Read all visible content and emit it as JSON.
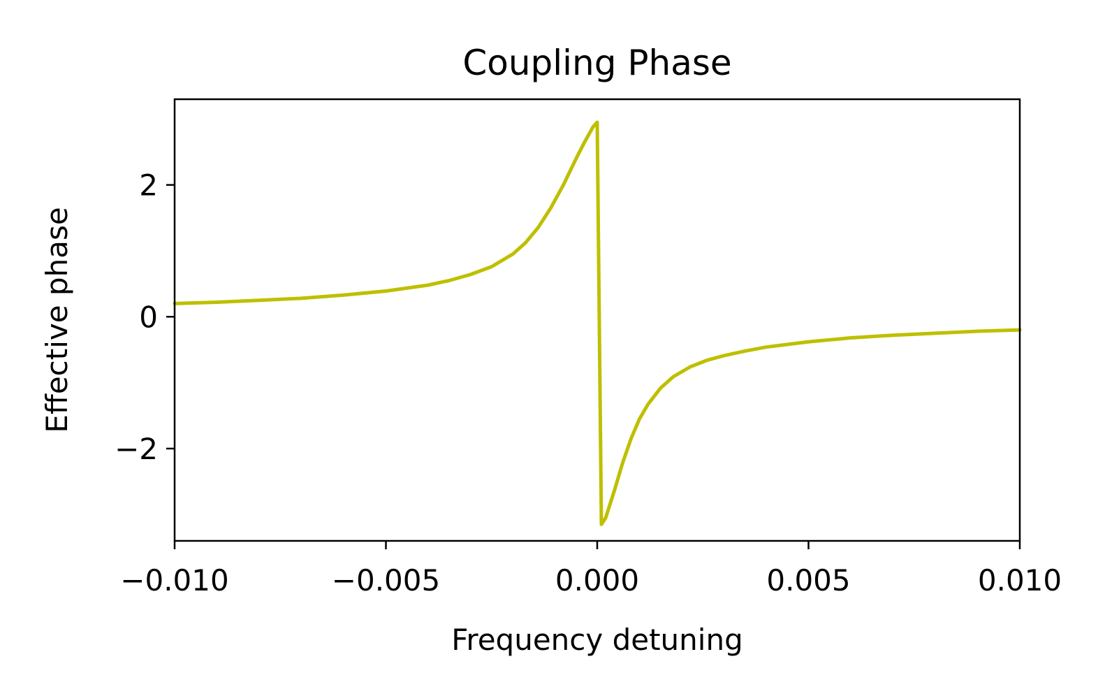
{
  "chart_data": {
    "type": "line",
    "title": "Coupling Phase",
    "xlabel": "Frequency detuning",
    "ylabel": "Effective phase",
    "xlim": [
      -0.01,
      0.01
    ],
    "ylim": [
      -3.4,
      3.3
    ],
    "grid": false,
    "line_color": "#bfbf00",
    "x_ticks": [
      {
        "value": -0.01,
        "label": "−0.010"
      },
      {
        "value": -0.005,
        "label": "−0.005"
      },
      {
        "value": 0.0,
        "label": "0.000"
      },
      {
        "value": 0.005,
        "label": "0.005"
      },
      {
        "value": 0.01,
        "label": "0.010"
      }
    ],
    "y_ticks": [
      {
        "value": 2,
        "label": "2"
      },
      {
        "value": 0,
        "label": "0"
      },
      {
        "value": -2,
        "label": "−2"
      }
    ],
    "series": [
      {
        "x": [
          -0.01,
          -0.009,
          -0.008,
          -0.007,
          -0.006,
          -0.005,
          -0.004,
          -0.0035,
          -0.003,
          -0.0025,
          -0.002,
          -0.0017,
          -0.0014,
          -0.0011,
          -0.0008,
          -0.0005,
          -0.0003,
          -0.0001,
          0.0,
          0.0001,
          0.0002,
          0.0004,
          0.0006,
          0.0008,
          0.001,
          0.0012,
          0.0015,
          0.0018,
          0.0022,
          0.0026,
          0.003,
          0.0035,
          0.004,
          0.005,
          0.006,
          0.007,
          0.008,
          0.009,
          0.01
        ],
        "y": [
          0.2,
          0.22,
          0.25,
          0.28,
          0.33,
          0.39,
          0.48,
          0.55,
          0.64,
          0.76,
          0.95,
          1.12,
          1.35,
          1.65,
          2.0,
          2.4,
          2.65,
          2.88,
          2.95,
          -3.15,
          -3.05,
          -2.65,
          -2.22,
          -1.85,
          -1.55,
          -1.33,
          -1.08,
          -0.91,
          -0.76,
          -0.66,
          -0.59,
          -0.52,
          -0.46,
          -0.38,
          -0.32,
          -0.28,
          -0.25,
          -0.22,
          -0.2
        ]
      }
    ]
  }
}
